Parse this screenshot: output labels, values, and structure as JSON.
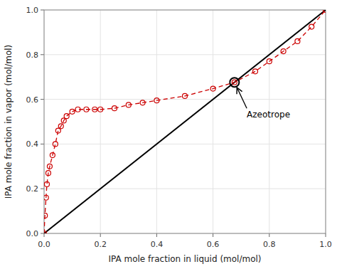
{
  "chart_data": {
    "type": "line",
    "xlabel": "IPA mole fraction in liquid (mol/mol)",
    "ylabel": "IPA mole fraction in vapor (mol/mol)",
    "xlim": [
      0,
      1
    ],
    "ylim": [
      0,
      1
    ],
    "xticks": [
      {
        "value": 0,
        "label": "0.0"
      },
      0.2,
      0.4,
      0.6,
      0.8,
      {
        "value": 1.0,
        "label": "1.0"
      }
    ],
    "yticks": [
      {
        "value": 0,
        "label": "0.0"
      },
      0.2,
      0.4,
      0.6,
      0.8,
      {
        "value": 1.0,
        "label": "1.0"
      }
    ],
    "grid": true,
    "series": [
      {
        "type": "line",
        "color": "#000000",
        "line_style": "solid",
        "x": [
          0.0,
          1.0
        ],
        "values": [
          0.0,
          1.0
        ]
      },
      {
        "type": "line",
        "color": "#CC0000",
        "line_style": "dashed",
        "marker": "circle",
        "x": [
          0.0,
          0.003,
          0.007,
          0.01,
          0.015,
          0.02,
          0.03,
          0.04,
          0.05,
          0.06,
          0.07,
          0.08,
          0.1,
          0.12,
          0.15,
          0.18,
          0.2,
          0.25,
          0.3,
          0.35,
          0.4,
          0.5,
          0.6,
          0.6763,
          0.75,
          0.8,
          0.85,
          0.9,
          0.95,
          1.0
        ],
        "values": [
          0.0,
          0.08,
          0.16,
          0.22,
          0.27,
          0.3,
          0.35,
          0.4,
          0.46,
          0.48,
          0.505,
          0.525,
          0.545,
          0.555,
          0.555,
          0.555,
          0.555,
          0.56,
          0.575,
          0.585,
          0.595,
          0.615,
          0.648,
          0.6763,
          0.725,
          0.77,
          0.815,
          0.86,
          0.925,
          1.0
        ]
      },
      {
        "type": "scatter",
        "color": "#000000",
        "marker": "circle",
        "x": [
          0.6763
        ],
        "values": [
          0.6763
        ]
      }
    ],
    "annotations": [
      {
        "text": "Azeotrope",
        "x": 0.6763,
        "y": 0.6763,
        "text_x": 0.72,
        "text_y": 0.56
      }
    ]
  }
}
